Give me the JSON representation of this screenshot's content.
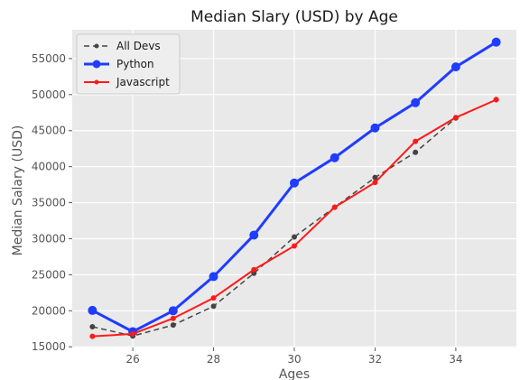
{
  "chart_data": {
    "type": "line",
    "title": "Median Slary (USD) by Age",
    "xlabel": "Ages",
    "ylabel": "Median Salary (USD)",
    "x": [
      25,
      26,
      27,
      28,
      29,
      30,
      31,
      32,
      33,
      34,
      35
    ],
    "xlim": [
      24.5,
      35.5
    ],
    "ylim": [
      14900,
      59000
    ],
    "xticks": [
      26,
      28,
      30,
      32,
      34
    ],
    "yticks": [
      15000,
      20000,
      25000,
      30000,
      35000,
      40000,
      45000,
      50000,
      55000
    ],
    "grid": true,
    "legend": "top-left",
    "background": "#e9e9e9",
    "series": [
      {
        "name": "All Devs",
        "values": [
          17784,
          16500,
          18012,
          20628,
          25206,
          30252,
          34368,
          38496,
          42000,
          46752,
          49320
        ],
        "color": "#444444",
        "style": "dashed",
        "marker": "dot"
      },
      {
        "name": "Python",
        "values": [
          20046,
          17100,
          20000,
          24744,
          30500,
          37732,
          41247,
          45372,
          48876,
          53850,
          57287
        ],
        "color": "#1f3cff",
        "style": "solid",
        "marker": "circle"
      },
      {
        "name": "Javascript",
        "values": [
          16446,
          16791,
          18942,
          21780,
          25704,
          29000,
          34372,
          37810,
          43515,
          46823,
          49293
        ],
        "color": "#ff1a1a",
        "style": "solid",
        "marker": "dot"
      }
    ]
  }
}
